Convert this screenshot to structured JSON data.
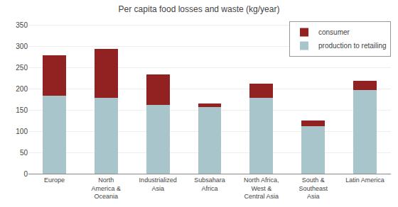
{
  "chart_data": {
    "type": "bar",
    "title": "Per capita food losses and waste (kg/year)",
    "categories": [
      "Europe",
      "North\nAmerica &\nOceania",
      "Industrialized\nAsia",
      "Subsahara\nAfrica",
      "North Africa,\nWest &\nCentral Asia",
      "South &\nSoutheast\nAsia",
      "Latin America"
    ],
    "series": [
      {
        "name": "production to retailing",
        "color": "#a8c5cc",
        "values": [
          185,
          180,
          163,
          158,
          180,
          112,
          197
        ]
      },
      {
        "name": "consumer",
        "color": "#922222",
        "values": [
          95,
          115,
          72,
          8,
          33,
          13,
          23
        ]
      }
    ],
    "stacked": true,
    "ylim": [
      0,
      360
    ],
    "yticks": [
      0,
      50,
      100,
      150,
      200,
      250,
      300,
      350
    ],
    "grid": true,
    "legend": "upper right"
  }
}
